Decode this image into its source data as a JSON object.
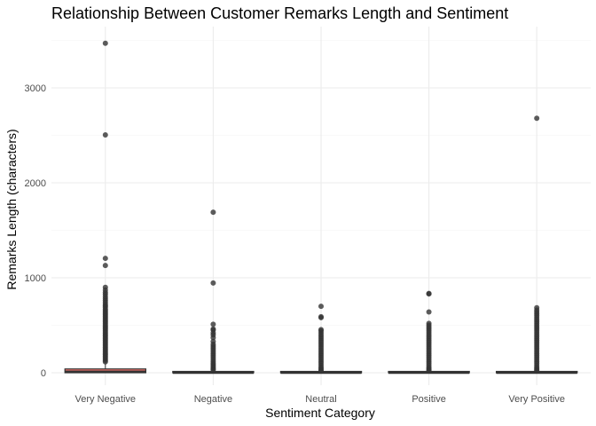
{
  "chart_data": {
    "type": "boxplot",
    "title": "Relationship Between Customer Remarks Length and Sentiment",
    "xlabel": "Sentiment Category",
    "ylabel": "Remarks Length (characters)",
    "categories": [
      "Very Negative",
      "Negative",
      "Neutral",
      "Positive",
      "Very Positive"
    ],
    "ylim": [
      -140,
      3540
    ],
    "yticks": [
      0,
      1000,
      2000,
      3000
    ],
    "grid": true,
    "colors": {
      "box_fill": "#f8766d",
      "box_line": "#333333",
      "point": "#333333"
    },
    "boxes": [
      {
        "category": "Very Negative",
        "q1": 0,
        "median": 12,
        "q3": 40,
        "whisker_low": 0,
        "whisker_high": 100,
        "outliers": [
          3470,
          2505,
          1205,
          1130,
          900,
          870,
          845,
          825,
          800,
          780,
          760,
          740,
          720,
          705,
          690,
          670,
          655,
          640,
          625,
          610,
          595,
          580,
          565,
          550,
          535,
          520,
          505,
          490,
          475,
          460,
          445,
          430,
          415,
          400,
          385,
          370,
          355,
          340,
          325,
          310,
          295,
          280,
          265,
          250,
          235,
          220,
          205,
          190,
          175,
          160,
          145,
          130,
          115
        ]
      },
      {
        "category": "Negative",
        "q1": 0,
        "median": 0,
        "q3": 8,
        "whisker_low": 0,
        "whisker_high": 20,
        "outliers": [
          1690,
          945,
          510,
          460,
          450,
          420,
          400,
          370,
          330,
          300,
          280,
          260,
          240,
          220,
          200,
          180,
          160,
          140,
          120,
          100,
          85,
          70,
          55,
          40,
          30
        ]
      },
      {
        "category": "Neutral",
        "q1": 0,
        "median": 0,
        "q3": 4,
        "whisker_low": 0,
        "whisker_high": 10,
        "outliers": [
          700,
          590,
          580,
          455,
          440,
          420,
          400,
          380,
          360,
          340,
          320,
          300,
          280,
          260,
          240,
          220,
          200,
          180,
          160,
          140,
          120,
          100,
          80,
          60,
          45,
          30,
          20
        ]
      },
      {
        "category": "Positive",
        "q1": 0,
        "median": 0,
        "q3": 4,
        "whisker_low": 0,
        "whisker_high": 10,
        "outliers": [
          835,
          830,
          640,
          520,
          500,
          480,
          460,
          440,
          420,
          400,
          380,
          360,
          340,
          320,
          300,
          280,
          260,
          240,
          220,
          200,
          180,
          160,
          140,
          120,
          100,
          80,
          60,
          45,
          30,
          20
        ]
      },
      {
        "category": "Very Positive",
        "q1": 0,
        "median": 0,
        "q3": 4,
        "whisker_low": 0,
        "whisker_high": 10,
        "outliers": [
          2680,
          685,
          660,
          640,
          620,
          600,
          580,
          560,
          540,
          520,
          500,
          480,
          460,
          440,
          420,
          400,
          380,
          360,
          340,
          320,
          300,
          280,
          260,
          240,
          220,
          200,
          180,
          160,
          140,
          120,
          100,
          80,
          60,
          45,
          30,
          20
        ]
      }
    ]
  }
}
